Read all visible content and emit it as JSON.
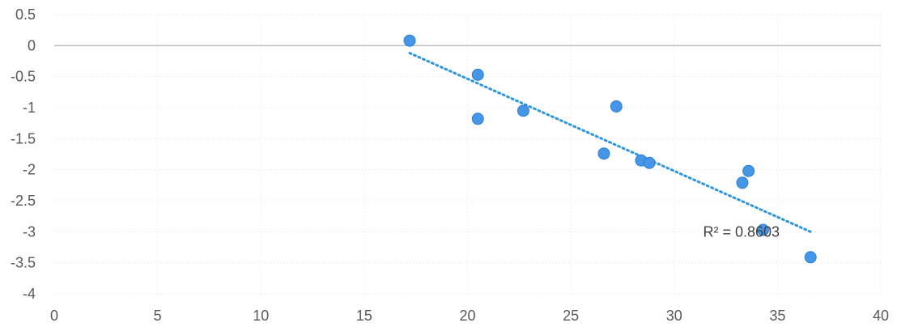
{
  "chart_data": {
    "type": "scatter",
    "title": "",
    "xlabel": "",
    "ylabel": "",
    "xlim": [
      0,
      40
    ],
    "ylim": [
      -4,
      0.5
    ],
    "x_ticks": [
      0,
      5,
      10,
      15,
      20,
      25,
      30,
      35,
      40
    ],
    "y_ticks": [
      0.5,
      0,
      -0.5,
      -1,
      -1.5,
      -2,
      -2.5,
      -3,
      -3.5,
      -4
    ],
    "x_tick_labels": [
      "0",
      "5",
      "10",
      "15",
      "20",
      "25",
      "30",
      "35",
      "40"
    ],
    "y_tick_labels": [
      "0.5",
      "0",
      "-0.5",
      "-1",
      "-1.5",
      "-2",
      "-2.5",
      "-3",
      "-3.5",
      "-4"
    ],
    "grid": true,
    "legend": "none",
    "series": [
      {
        "points": [
          {
            "x": 17.2,
            "y": 0.08
          },
          {
            "x": 20.5,
            "y": -0.47
          },
          {
            "x": 20.5,
            "y": -1.18
          },
          {
            "x": 22.7,
            "y": -1.05
          },
          {
            "x": 26.6,
            "y": -1.74
          },
          {
            "x": 27.2,
            "y": -0.98
          },
          {
            "x": 28.4,
            "y": -1.85
          },
          {
            "x": 28.8,
            "y": -1.89
          },
          {
            "x": 33.3,
            "y": -2.21
          },
          {
            "x": 33.6,
            "y": -2.02
          },
          {
            "x": 34.3,
            "y": -2.97
          },
          {
            "x": 36.6,
            "y": -3.41
          }
        ],
        "trendline": {
          "type": "linear",
          "x_start": 17.2,
          "y_start": -0.12,
          "x_end": 36.6,
          "y_end": -3.0
        }
      }
    ],
    "annotations": [
      {
        "text": "R² = 0.8603",
        "x": 31.4,
        "y": -3.0
      }
    ],
    "colors": {
      "point_fill": "#4596E7",
      "point_stroke": "#2E7FD3",
      "trendline": "#2E96DF",
      "axis": "#BFBFBF",
      "grid": "#E3E3E3",
      "tick_text": "#595959"
    }
  }
}
